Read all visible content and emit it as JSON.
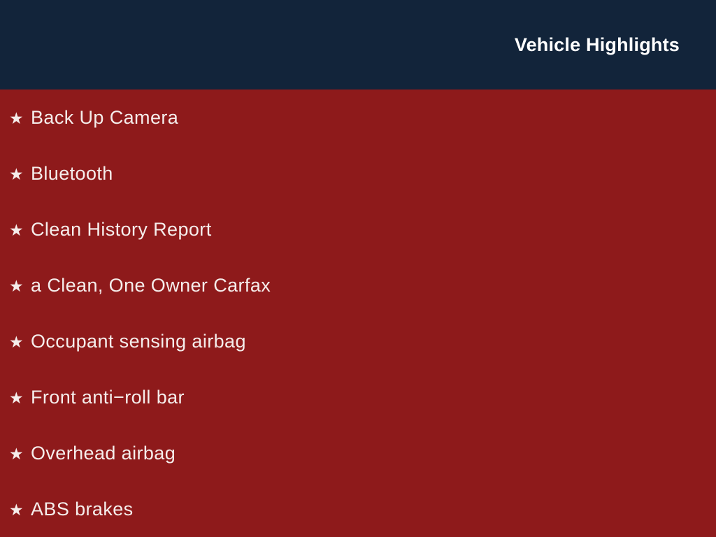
{
  "header": {
    "title": "Vehicle Highlights",
    "bg_color": "#12243a",
    "text_color": "#ffffff"
  },
  "list": {
    "bg_color": "#8e1a1b",
    "text_color": "#f5edeb",
    "bullet_icon": "star-icon",
    "bullet_glyph": "★",
    "items": [
      "Back Up Camera",
      "Bluetooth",
      "Clean History Report",
      "a Clean, One Owner Carfax",
      "Occupant sensing airbag",
      "Front anti−roll bar",
      "Overhead airbag",
      "ABS brakes"
    ]
  }
}
